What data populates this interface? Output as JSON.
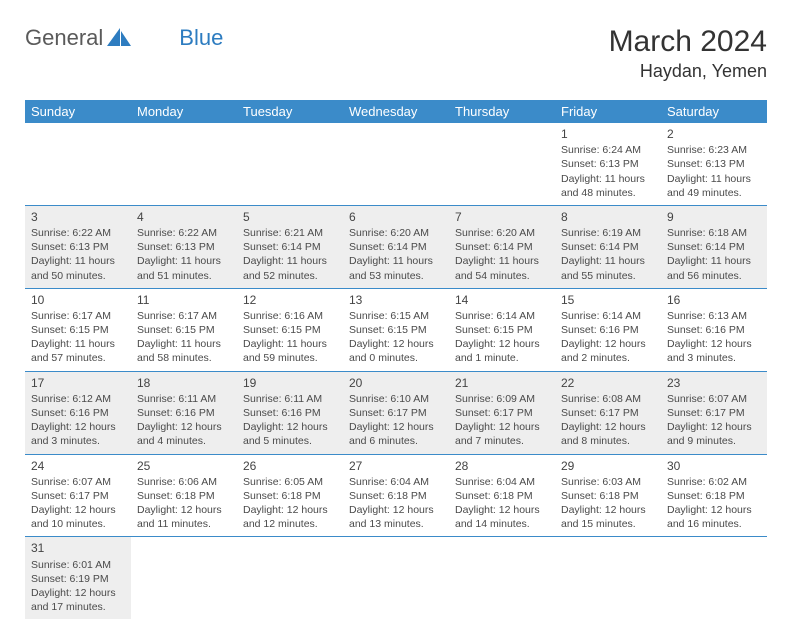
{
  "logo": {
    "text1": "General",
    "text2": "Blue"
  },
  "title": "March 2024",
  "location": "Haydan, Yemen",
  "colors": {
    "header_bg": "#3b8bc9",
    "header_text": "#ffffff",
    "cell_border": "#3b8bc9",
    "alt_row_bg": "#eeeeee",
    "text": "#4a4a4a",
    "logo_blue": "#2d7cc0"
  },
  "weekdays": [
    "Sunday",
    "Monday",
    "Tuesday",
    "Wednesday",
    "Thursday",
    "Friday",
    "Saturday"
  ],
  "weeks": [
    [
      null,
      null,
      null,
      null,
      null,
      {
        "d": "1",
        "sr": "Sunrise: 6:24 AM",
        "ss": "Sunset: 6:13 PM",
        "dl1": "Daylight: 11 hours",
        "dl2": "and 48 minutes."
      },
      {
        "d": "2",
        "sr": "Sunrise: 6:23 AM",
        "ss": "Sunset: 6:13 PM",
        "dl1": "Daylight: 11 hours",
        "dl2": "and 49 minutes."
      }
    ],
    [
      {
        "d": "3",
        "sr": "Sunrise: 6:22 AM",
        "ss": "Sunset: 6:13 PM",
        "dl1": "Daylight: 11 hours",
        "dl2": "and 50 minutes."
      },
      {
        "d": "4",
        "sr": "Sunrise: 6:22 AM",
        "ss": "Sunset: 6:13 PM",
        "dl1": "Daylight: 11 hours",
        "dl2": "and 51 minutes."
      },
      {
        "d": "5",
        "sr": "Sunrise: 6:21 AM",
        "ss": "Sunset: 6:14 PM",
        "dl1": "Daylight: 11 hours",
        "dl2": "and 52 minutes."
      },
      {
        "d": "6",
        "sr": "Sunrise: 6:20 AM",
        "ss": "Sunset: 6:14 PM",
        "dl1": "Daylight: 11 hours",
        "dl2": "and 53 minutes."
      },
      {
        "d": "7",
        "sr": "Sunrise: 6:20 AM",
        "ss": "Sunset: 6:14 PM",
        "dl1": "Daylight: 11 hours",
        "dl2": "and 54 minutes."
      },
      {
        "d": "8",
        "sr": "Sunrise: 6:19 AM",
        "ss": "Sunset: 6:14 PM",
        "dl1": "Daylight: 11 hours",
        "dl2": "and 55 minutes."
      },
      {
        "d": "9",
        "sr": "Sunrise: 6:18 AM",
        "ss": "Sunset: 6:14 PM",
        "dl1": "Daylight: 11 hours",
        "dl2": "and 56 minutes."
      }
    ],
    [
      {
        "d": "10",
        "sr": "Sunrise: 6:17 AM",
        "ss": "Sunset: 6:15 PM",
        "dl1": "Daylight: 11 hours",
        "dl2": "and 57 minutes."
      },
      {
        "d": "11",
        "sr": "Sunrise: 6:17 AM",
        "ss": "Sunset: 6:15 PM",
        "dl1": "Daylight: 11 hours",
        "dl2": "and 58 minutes."
      },
      {
        "d": "12",
        "sr": "Sunrise: 6:16 AM",
        "ss": "Sunset: 6:15 PM",
        "dl1": "Daylight: 11 hours",
        "dl2": "and 59 minutes."
      },
      {
        "d": "13",
        "sr": "Sunrise: 6:15 AM",
        "ss": "Sunset: 6:15 PM",
        "dl1": "Daylight: 12 hours",
        "dl2": "and 0 minutes."
      },
      {
        "d": "14",
        "sr": "Sunrise: 6:14 AM",
        "ss": "Sunset: 6:15 PM",
        "dl1": "Daylight: 12 hours",
        "dl2": "and 1 minute."
      },
      {
        "d": "15",
        "sr": "Sunrise: 6:14 AM",
        "ss": "Sunset: 6:16 PM",
        "dl1": "Daylight: 12 hours",
        "dl2": "and 2 minutes."
      },
      {
        "d": "16",
        "sr": "Sunrise: 6:13 AM",
        "ss": "Sunset: 6:16 PM",
        "dl1": "Daylight: 12 hours",
        "dl2": "and 3 minutes."
      }
    ],
    [
      {
        "d": "17",
        "sr": "Sunrise: 6:12 AM",
        "ss": "Sunset: 6:16 PM",
        "dl1": "Daylight: 12 hours",
        "dl2": "and 3 minutes."
      },
      {
        "d": "18",
        "sr": "Sunrise: 6:11 AM",
        "ss": "Sunset: 6:16 PM",
        "dl1": "Daylight: 12 hours",
        "dl2": "and 4 minutes."
      },
      {
        "d": "19",
        "sr": "Sunrise: 6:11 AM",
        "ss": "Sunset: 6:16 PM",
        "dl1": "Daylight: 12 hours",
        "dl2": "and 5 minutes."
      },
      {
        "d": "20",
        "sr": "Sunrise: 6:10 AM",
        "ss": "Sunset: 6:17 PM",
        "dl1": "Daylight: 12 hours",
        "dl2": "and 6 minutes."
      },
      {
        "d": "21",
        "sr": "Sunrise: 6:09 AM",
        "ss": "Sunset: 6:17 PM",
        "dl1": "Daylight: 12 hours",
        "dl2": "and 7 minutes."
      },
      {
        "d": "22",
        "sr": "Sunrise: 6:08 AM",
        "ss": "Sunset: 6:17 PM",
        "dl1": "Daylight: 12 hours",
        "dl2": "and 8 minutes."
      },
      {
        "d": "23",
        "sr": "Sunrise: 6:07 AM",
        "ss": "Sunset: 6:17 PM",
        "dl1": "Daylight: 12 hours",
        "dl2": "and 9 minutes."
      }
    ],
    [
      {
        "d": "24",
        "sr": "Sunrise: 6:07 AM",
        "ss": "Sunset: 6:17 PM",
        "dl1": "Daylight: 12 hours",
        "dl2": "and 10 minutes."
      },
      {
        "d": "25",
        "sr": "Sunrise: 6:06 AM",
        "ss": "Sunset: 6:18 PM",
        "dl1": "Daylight: 12 hours",
        "dl2": "and 11 minutes."
      },
      {
        "d": "26",
        "sr": "Sunrise: 6:05 AM",
        "ss": "Sunset: 6:18 PM",
        "dl1": "Daylight: 12 hours",
        "dl2": "and 12 minutes."
      },
      {
        "d": "27",
        "sr": "Sunrise: 6:04 AM",
        "ss": "Sunset: 6:18 PM",
        "dl1": "Daylight: 12 hours",
        "dl2": "and 13 minutes."
      },
      {
        "d": "28",
        "sr": "Sunrise: 6:04 AM",
        "ss": "Sunset: 6:18 PM",
        "dl1": "Daylight: 12 hours",
        "dl2": "and 14 minutes."
      },
      {
        "d": "29",
        "sr": "Sunrise: 6:03 AM",
        "ss": "Sunset: 6:18 PM",
        "dl1": "Daylight: 12 hours",
        "dl2": "and 15 minutes."
      },
      {
        "d": "30",
        "sr": "Sunrise: 6:02 AM",
        "ss": "Sunset: 6:18 PM",
        "dl1": "Daylight: 12 hours",
        "dl2": "and 16 minutes."
      }
    ],
    [
      {
        "d": "31",
        "sr": "Sunrise: 6:01 AM",
        "ss": "Sunset: 6:19 PM",
        "dl1": "Daylight: 12 hours",
        "dl2": "and 17 minutes."
      },
      null,
      null,
      null,
      null,
      null,
      null
    ]
  ]
}
